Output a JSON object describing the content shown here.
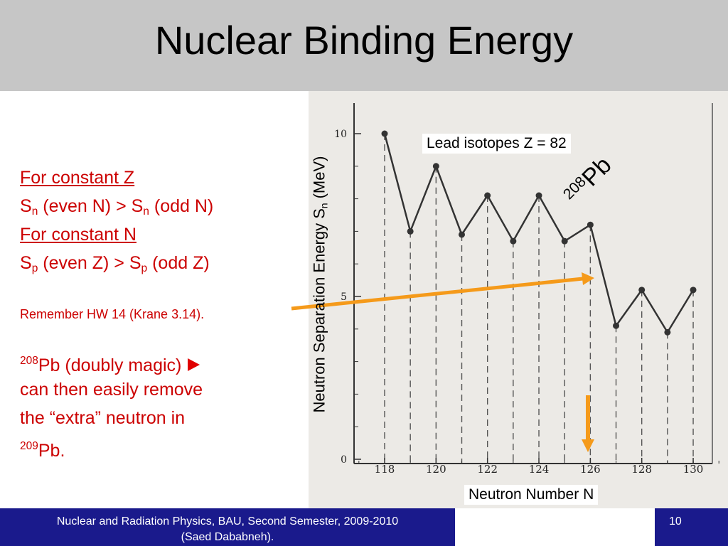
{
  "slide": {
    "title": "Nuclear Binding Energy",
    "page_number": "10"
  },
  "left": {
    "line1": "For constant Z",
    "line2_a": "S",
    "line2_sub1": "n",
    "line2_b": " (even N) > S",
    "line2_sub2": "n",
    "line2_c": " (odd N)",
    "line3": "For constant N",
    "line4_a": "S",
    "line4_sub1": "p",
    "line4_b": " (even Z) > S",
    "line4_sub2": "p",
    "line4_c": " (odd Z)",
    "remember": "Remember HW 14 (Krane 3.14).",
    "pb_sup": "208",
    "pb_text": "Pb (doubly magic)",
    "pb_line2": "can then easily remove",
    "pb_line3": "the “extra” neutron in",
    "pb_sup2": "209",
    "pb_line4": "Pb.",
    "bullet_icon": "right-triangle-icon"
  },
  "footer": {
    "text_line1": "Nuclear and Radiation Physics, BAU, Second Semester, 2009-2010",
    "text_line2": "(Saed Dababneh)."
  },
  "chart_data": {
    "type": "line",
    "title": "Lead isotopes Z = 82",
    "xlabel": "Neutron Number N",
    "ylabel_main": "Neutron Separation Energy S",
    "ylabel_sub": "n",
    "ylabel_unit": " (MeV)",
    "annotation_sup": "208",
    "annotation_text": "Pb",
    "x": [
      118,
      119,
      120,
      121,
      122,
      123,
      124,
      125,
      126,
      127,
      128,
      129,
      130
    ],
    "y": [
      10.0,
      7.0,
      9.0,
      6.9,
      8.1,
      6.7,
      8.1,
      6.7,
      7.2,
      4.1,
      5.2,
      3.9,
      5.2
    ],
    "xticks": [
      "118",
      "120",
      "122",
      "124",
      "126",
      "128",
      "130"
    ],
    "yticks": [
      "0",
      "5",
      "10"
    ],
    "xlim": [
      117,
      131
    ],
    "ylim": [
      0,
      10.5
    ],
    "grid": "vertical dashed lines at each data point",
    "colors": {
      "line": "#333333",
      "arrow": "#f59a1a",
      "bullet": "#e00000"
    }
  }
}
